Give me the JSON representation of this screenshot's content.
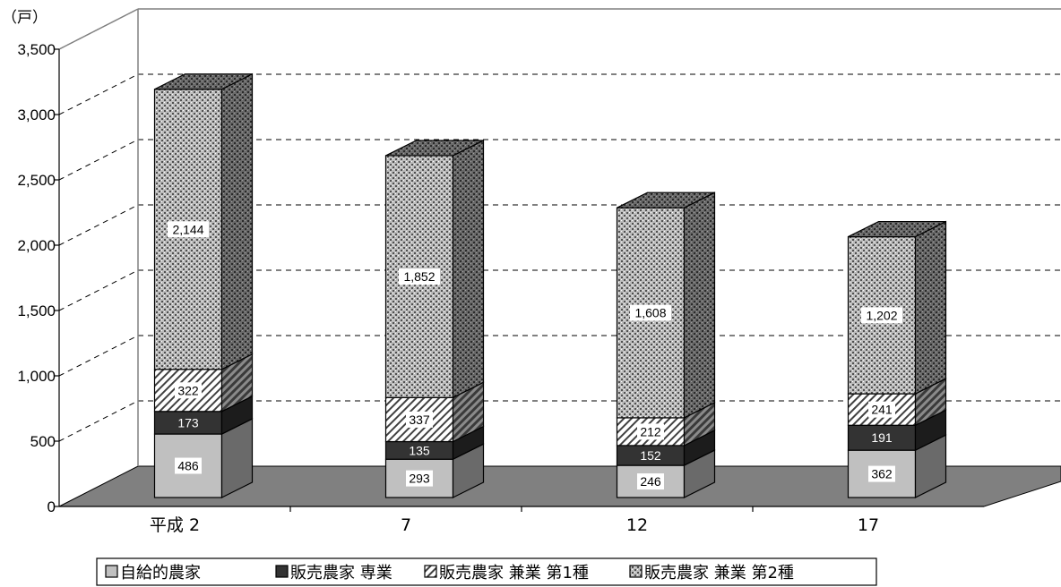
{
  "chart_data": {
    "type": "bar",
    "stacked": true,
    "three_d": true,
    "unit_label": "（戸）",
    "categories": [
      "平成 2",
      "7",
      "12",
      "17"
    ],
    "series": [
      {
        "name": "自給的農家",
        "values": [
          486,
          293,
          246,
          362
        ],
        "color": "#c0c0c0",
        "pattern": "solid"
      },
      {
        "name": "販売農家 専業",
        "values": [
          173,
          135,
          152,
          191
        ],
        "color": "#333333",
        "pattern": "solid"
      },
      {
        "name": "販売農家 兼業 第1種",
        "values": [
          322,
          337,
          212,
          241
        ],
        "color": "#ffffff",
        "pattern": "diagonal"
      },
      {
        "name": "販売農家 兼業 第2種",
        "values": [
          2144,
          1852,
          1608,
          1202
        ],
        "color": "#a8a8a8",
        "pattern": "dots"
      }
    ],
    "y_ticks": [
      "0",
      "500",
      "1,000",
      "1,500",
      "2,000",
      "2,500",
      "3,000",
      "3,500"
    ],
    "data_labels": [
      [
        "486",
        "293",
        "246",
        "362"
      ],
      [
        "173",
        "135",
        "152",
        "191"
      ],
      [
        "322",
        "337",
        "212",
        "241"
      ],
      [
        "2,144",
        "1,852",
        "1,608",
        "1,202"
      ]
    ],
    "ylim": [
      0,
      3500
    ],
    "grid": true,
    "legend_position": "bottom"
  }
}
